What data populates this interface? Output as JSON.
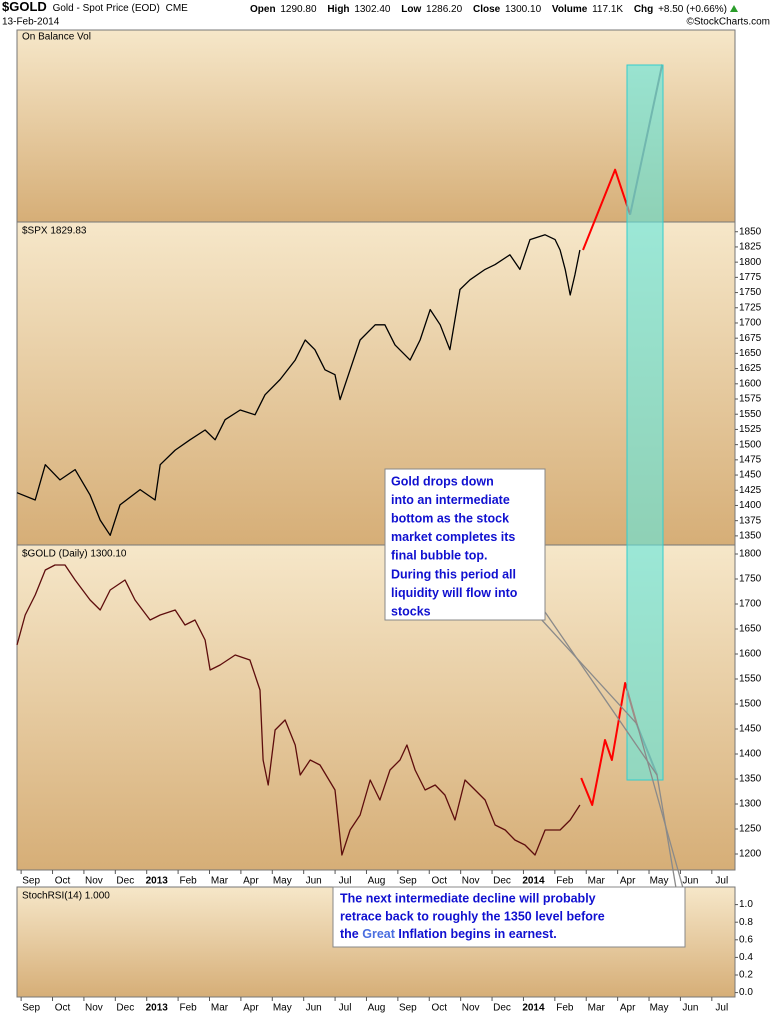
{
  "header": {
    "symbol": "$GOLD",
    "name": "Gold - Spot Price (EOD)",
    "exchange": "CME",
    "date": "13-Feb-2014",
    "stats": [
      [
        "Open",
        "1290.80"
      ],
      [
        "High",
        "1302.40"
      ],
      [
        "Low",
        "1286.20"
      ],
      [
        "Close",
        "1300.10"
      ],
      [
        "Volume",
        "117.1K"
      ],
      [
        "Chg",
        "+8.50 (+0.66%)"
      ]
    ],
    "source": "©StockCharts.com",
    "obv_label": "On Balance Vol"
  },
  "annotations": [
    {
      "lines": [
        "Gold drops down",
        "into an intermediate",
        "bottom as the stock",
        "market completes its",
        "final bubble top.",
        "During this period all",
        "liquidity will flow into",
        "stocks"
      ]
    },
    {
      "lines": [
        "The next intermediate decline will probably",
        "retrace back to roughly the 1350 level before"
      ],
      "last_line": [
        "the ",
        "Great",
        " Inflation begins in earnest."
      ]
    }
  ],
  "chart_data": [
    {
      "type": "line",
      "title": "$SPX 1829.83",
      "color": "#000000",
      "x": [
        -0.45,
        0.13,
        0.45,
        0.92,
        1.4,
        1.88,
        2.2,
        2.52,
        2.83,
        3.47,
        3.95,
        4.11,
        4.59,
        5.06,
        5.54,
        5.86,
        6.18,
        6.66,
        7.13,
        7.45,
        7.93,
        8.41,
        8.73,
        9.04,
        9.36,
        9.68,
        9.84,
        10.16,
        10.48,
        10.96,
        11.27,
        11.59,
        12.07,
        12.39,
        12.71,
        13.03,
        13.34,
        13.66,
        13.98,
        14.46,
        14.78,
        15.25,
        15.57,
        15.89,
        16.37,
        16.69,
        16.85,
        17.01,
        17.17,
        17.32,
        17.48
      ],
      "values": [
        1421,
        1409,
        1467,
        1442,
        1459,
        1417,
        1376,
        1351,
        1401,
        1426,
        1409,
        1467,
        1491,
        1508,
        1524,
        1508,
        1541,
        1557,
        1549,
        1582,
        1607,
        1639,
        1672,
        1656,
        1623,
        1615,
        1574,
        1623,
        1672,
        1697,
        1697,
        1664,
        1639,
        1672,
        1722,
        1697,
        1656,
        1755,
        1771,
        1788,
        1796,
        1812,
        1788,
        1837,
        1845,
        1837,
        1820,
        1788,
        1746,
        1779,
        1820
      ],
      "projections": [
        {
          "x": [
            17.58,
            18.6,
            19.08
          ],
          "values": [
            1820,
            1952,
            1878
          ],
          "color": "#ff0000"
        },
        {
          "x": [
            19.08,
            20.1
          ],
          "values": [
            1878,
            2125
          ],
          "color": "#8c6f66"
        }
      ],
      "xlim": [
        -0.45,
        22.42
      ],
      "ylim": [
        1335,
        1866
      ],
      "yticks": [
        1350,
        1375,
        1400,
        1425,
        1450,
        1475,
        1500,
        1525,
        1550,
        1575,
        1600,
        1625,
        1650,
        1675,
        1700,
        1725,
        1750,
        1775,
        1800,
        1825,
        1850
      ]
    },
    {
      "type": "line",
      "title": "$GOLD (Daily) 1300.10",
      "color": "#5e0d0d",
      "x": [
        -0.45,
        -0.19,
        0.13,
        0.45,
        0.76,
        1.08,
        1.4,
        1.88,
        2.2,
        2.52,
        2.99,
        3.31,
        3.79,
        4.11,
        4.59,
        4.9,
        5.22,
        5.54,
        5.7,
        6.02,
        6.5,
        6.97,
        7.29,
        7.39,
        7.55,
        7.77,
        8.09,
        8.41,
        8.57,
        8.89,
        9.2,
        9.68,
        9.9,
        10.16,
        10.48,
        10.8,
        11.11,
        11.43,
        11.75,
        11.97,
        12.23,
        12.55,
        12.87,
        13.18,
        13.5,
        13.82,
        14.14,
        14.46,
        14.78,
        15.1,
        15.41,
        15.73,
        16.05,
        16.37,
        16.85,
        17.17,
        17.48
      ],
      "values": [
        1618,
        1678,
        1718,
        1768,
        1778,
        1778,
        1748,
        1708,
        1688,
        1728,
        1748,
        1708,
        1668,
        1678,
        1688,
        1658,
        1668,
        1628,
        1568,
        1578,
        1598,
        1588,
        1528,
        1388,
        1338,
        1448,
        1468,
        1418,
        1358,
        1388,
        1378,
        1328,
        1198,
        1248,
        1278,
        1348,
        1308,
        1368,
        1388,
        1418,
        1368,
        1328,
        1338,
        1318,
        1268,
        1348,
        1328,
        1308,
        1258,
        1248,
        1228,
        1218,
        1198,
        1248,
        1248,
        1268,
        1298
      ],
      "projections": [
        {
          "x": [
            17.52,
            17.87,
            18.28,
            18.5,
            18.92,
            19.3
          ],
          "values": [
            1352,
            1298,
            1428,
            1388,
            1542,
            1458
          ],
          "color": "#ff0000"
        },
        {
          "x": [
            19.3,
            19.94
          ],
          "values": [
            1458,
            1358
          ],
          "color": "#8c6f66"
        }
      ],
      "xlim": [
        -0.45,
        22.42
      ],
      "ylim": [
        1168,
        1818
      ],
      "yticks": [
        1200,
        1250,
        1300,
        1350,
        1400,
        1450,
        1500,
        1550,
        1600,
        1650,
        1700,
        1750,
        1800
      ],
      "xticks": [
        {
          "value": 0,
          "label": "Sep"
        },
        {
          "value": 1,
          "label": "Oct"
        },
        {
          "value": 2,
          "label": "Nov"
        },
        {
          "value": 3,
          "label": "Dec"
        },
        {
          "value": 4,
          "label": "2013"
        },
        {
          "value": 5,
          "label": "Feb"
        },
        {
          "value": 6,
          "label": "Mar"
        },
        {
          "value": 7,
          "label": "Apr"
        },
        {
          "value": 8,
          "label": "May"
        },
        {
          "value": 9,
          "label": "Jun"
        },
        {
          "value": 10,
          "label": "Jul"
        },
        {
          "value": 11,
          "label": "Aug"
        },
        {
          "value": 12,
          "label": "Sep"
        },
        {
          "value": 13,
          "label": "Oct"
        },
        {
          "value": 14,
          "label": "Nov"
        },
        {
          "value": 15,
          "label": "Dec"
        },
        {
          "value": 16,
          "label": "2014"
        },
        {
          "value": 17,
          "label": "Feb"
        },
        {
          "value": 18,
          "label": "Mar"
        },
        {
          "value": 19,
          "label": "Apr"
        },
        {
          "value": 20,
          "label": "May"
        },
        {
          "value": 21,
          "label": "Jun"
        },
        {
          "value": 22,
          "label": "Jul"
        }
      ]
    },
    {
      "type": "empty",
      "title": "StochRSI(14) 1.000",
      "xlim": [
        -0.45,
        22.42
      ],
      "ylim": [
        -0.05,
        1.2
      ],
      "yticks": [
        {
          "value": 0,
          "label": "0.0"
        },
        0.2,
        0.4,
        0.6,
        0.8,
        {
          "value": 1,
          "label": "1.0"
        }
      ],
      "xticks": [
        {
          "value": 0,
          "label": "Sep"
        },
        {
          "value": 1,
          "label": "Oct"
        },
        {
          "value": 2,
          "label": "Nov"
        },
        {
          "value": 3,
          "label": "Dec"
        },
        {
          "value": 4,
          "label": "2013"
        },
        {
          "value": 5,
          "label": "Feb"
        },
        {
          "value": 6,
          "label": "Mar"
        },
        {
          "value": 7,
          "label": "Apr"
        },
        {
          "value": 8,
          "label": "May"
        },
        {
          "value": 9,
          "label": "Jun"
        },
        {
          "value": 10,
          "label": "Jul"
        },
        {
          "value": 11,
          "label": "Aug"
        },
        {
          "value": 12,
          "label": "Sep"
        },
        {
          "value": 13,
          "label": "Oct"
        },
        {
          "value": 14,
          "label": "Nov"
        },
        {
          "value": 15,
          "label": "Dec"
        },
        {
          "value": 16,
          "label": "2014"
        },
        {
          "value": 17,
          "label": "Feb"
        },
        {
          "value": 18,
          "label": "Mar"
        },
        {
          "value": 19,
          "label": "Apr"
        },
        {
          "value": 20,
          "label": "May"
        },
        {
          "value": 21,
          "label": "Jun"
        },
        {
          "value": 22,
          "label": "Jul"
        }
      ]
    }
  ]
}
